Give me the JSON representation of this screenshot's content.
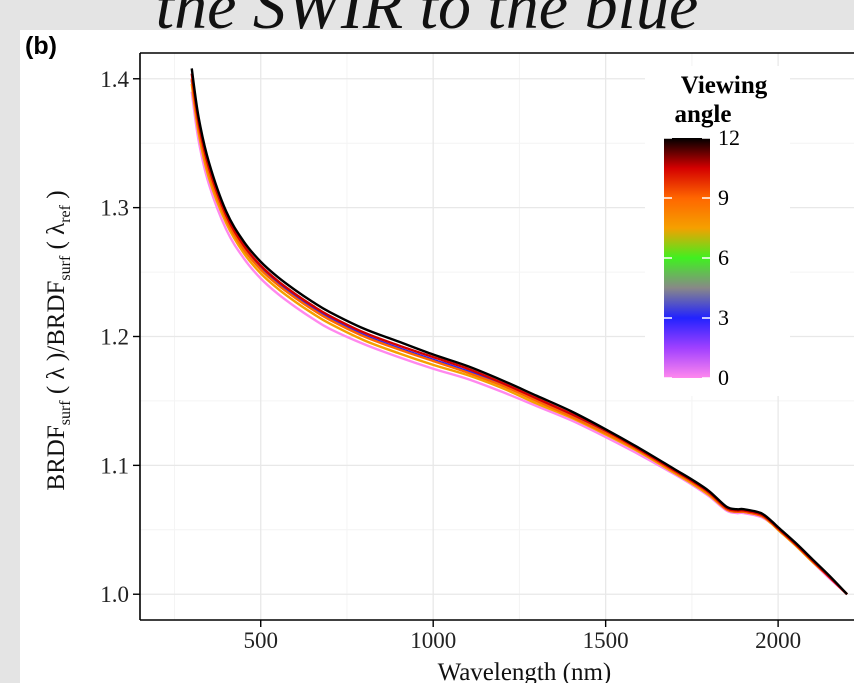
{
  "header": {
    "text": "the SWIR to the blue"
  },
  "panel_label": "(b)",
  "chart_data": {
    "type": "line",
    "title": "",
    "xlabel": "Wavelength (nm)",
    "ylabel": "BRDF_surf(λ)/BRDF_surf(λ_ref)",
    "ylabel_parts": {
      "a": "BRDF",
      "a_sub": "surf",
      "b": " ( λ )/BRDF",
      "b_sub": "surf",
      "c": " ( λ",
      "c_sub": "ref",
      "d": " )"
    },
    "xlim": [
      150,
      2220
    ],
    "ylim": [
      0.98,
      1.42
    ],
    "x_ticks": [
      500,
      1000,
      1500,
      2000
    ],
    "x_tick_labels": [
      "500",
      "1000",
      "1500",
      "2000"
    ],
    "y_ticks": [
      1.0,
      1.1,
      1.2,
      1.3,
      1.4
    ],
    "y_tick_labels": [
      "1.0",
      "1.1",
      "1.2",
      "1.3",
      "1.4"
    ],
    "grid": true,
    "legend": {
      "title_line1": "Viewing",
      "title_line2": "angle",
      "placement": "top-right",
      "min": 0,
      "max": 12,
      "ticks": [
        12,
        9,
        6,
        3,
        0
      ],
      "tick_labels": [
        "12",
        "9",
        "6",
        "3",
        "0"
      ],
      "gradient_colors": [
        "#000000",
        "#d40000",
        "#ff6600",
        "#f5a000",
        "#40f020",
        "#888888",
        "#2222ff",
        "#a040ff",
        "#ff88ee"
      ]
    },
    "x": [
      300,
      320,
      350,
      400,
      450,
      500,
      550,
      600,
      650,
      700,
      800,
      900,
      1000,
      1100,
      1200,
      1300,
      1400,
      1500,
      1600,
      1700,
      1750,
      1800,
      1850,
      1880,
      1900,
      1950,
      1980,
      2000,
      2050,
      2100,
      2150,
      2200
    ],
    "series": [
      {
        "color": "#000000",
        "values": [
          1.408,
          1.37,
          1.335,
          1.297,
          1.274,
          1.258,
          1.246,
          1.236,
          1.227,
          1.219,
          1.206,
          1.196,
          1.186,
          1.177,
          1.166,
          1.154,
          1.142,
          1.128,
          1.113,
          1.097,
          1.089,
          1.08,
          1.068,
          1.066,
          1.066,
          1.063,
          1.057,
          1.052,
          1.04,
          1.027,
          1.014,
          1.0
        ]
      },
      {
        "color": "#d40000",
        "values": [
          1.404,
          1.366,
          1.331,
          1.294,
          1.271,
          1.255,
          1.243,
          1.233,
          1.224,
          1.216,
          1.203,
          1.193,
          1.184,
          1.175,
          1.164,
          1.152,
          1.14,
          1.127,
          1.112,
          1.096,
          1.088,
          1.079,
          1.067,
          1.065,
          1.065,
          1.062,
          1.056,
          1.051,
          1.039,
          1.026,
          1.013,
          1.0
        ]
      },
      {
        "color": "#ff6600",
        "values": [
          1.4,
          1.362,
          1.327,
          1.291,
          1.268,
          1.252,
          1.24,
          1.23,
          1.221,
          1.213,
          1.2,
          1.19,
          1.181,
          1.172,
          1.162,
          1.15,
          1.138,
          1.125,
          1.111,
          1.095,
          1.087,
          1.078,
          1.066,
          1.064,
          1.064,
          1.061,
          1.056,
          1.051,
          1.039,
          1.026,
          1.013,
          1.0
        ]
      },
      {
        "color": "#f5a000",
        "values": [
          1.396,
          1.358,
          1.323,
          1.288,
          1.265,
          1.249,
          1.237,
          1.227,
          1.218,
          1.21,
          1.197,
          1.187,
          1.178,
          1.17,
          1.16,
          1.148,
          1.137,
          1.124,
          1.11,
          1.094,
          1.086,
          1.077,
          1.066,
          1.064,
          1.064,
          1.061,
          1.055,
          1.05,
          1.038,
          1.025,
          1.013,
          1.0
        ]
      },
      {
        "color": "#2222ff",
        "values": [
          1.399,
          1.361,
          1.326,
          1.29,
          1.268,
          1.253,
          1.241,
          1.231,
          1.222,
          1.214,
          1.201,
          1.191,
          1.182,
          1.173,
          1.163,
          1.151,
          1.139,
          1.126,
          1.111,
          1.095,
          1.087,
          1.078,
          1.066,
          1.064,
          1.064,
          1.062,
          1.056,
          1.051,
          1.039,
          1.026,
          1.013,
          1.0
        ]
      },
      {
        "color": "#ff88ee",
        "values": [
          1.39,
          1.352,
          1.318,
          1.283,
          1.261,
          1.245,
          1.233,
          1.223,
          1.214,
          1.206,
          1.194,
          1.184,
          1.175,
          1.167,
          1.157,
          1.146,
          1.135,
          1.122,
          1.108,
          1.093,
          1.085,
          1.076,
          1.065,
          1.063,
          1.063,
          1.06,
          1.055,
          1.05,
          1.038,
          1.025,
          1.012,
          1.0
        ]
      }
    ]
  }
}
